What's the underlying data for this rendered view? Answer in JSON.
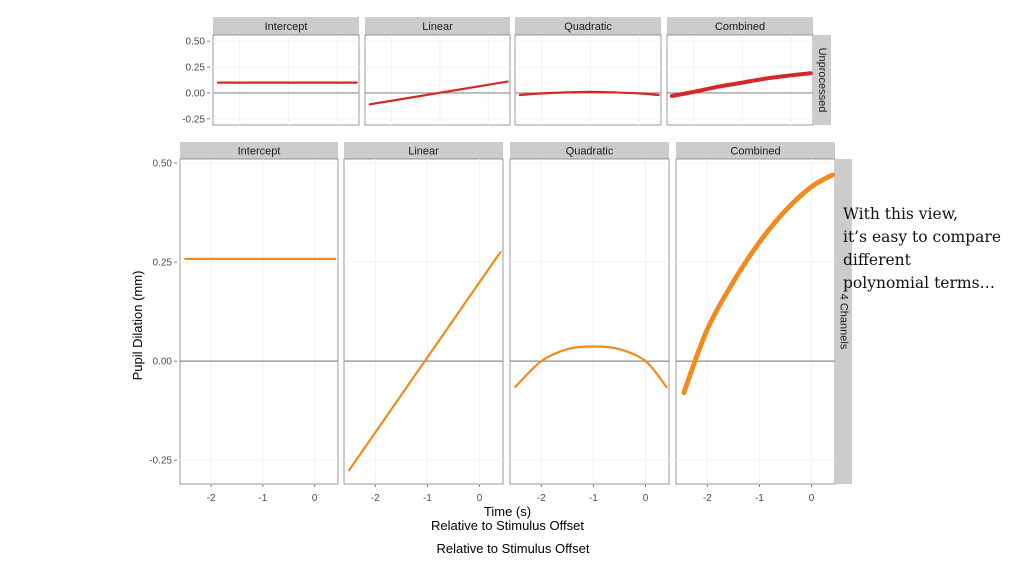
{
  "annotation": {
    "lines": [
      "With this view,",
      "it’s easy to compare",
      "different",
      "polynomial terms…"
    ]
  },
  "chart_data": [
    {
      "type": "line",
      "row_label": "Unprocessed",
      "facets": [
        "Intercept",
        "Linear",
        "Quadratic",
        "Combined"
      ],
      "x_ticks": [
        -2,
        -1,
        0
      ],
      "xlim": [
        -2.55,
        0.45
      ],
      "y_ticks": [
        0.5,
        0.25,
        0.0,
        -0.25
      ],
      "y_tick_labels": [
        "0.50",
        "0.25",
        "0.00",
        "-0.25"
      ],
      "ylim": [
        -0.31,
        0.56
      ],
      "color": "#d62728",
      "series": [
        {
          "facet": "Intercept",
          "x": [
            -2.45,
            0.4
          ],
          "y": [
            0.1,
            0.1
          ]
        },
        {
          "facet": "Linear",
          "x": [
            -2.45,
            0.4
          ],
          "y": [
            -0.11,
            0.11
          ]
        },
        {
          "facet": "Quadratic",
          "x": [
            -2.45,
            -2.0,
            -1.5,
            -1.0,
            -0.5,
            0.0,
            0.4
          ],
          "y": [
            -0.02,
            -0.005,
            0.005,
            0.01,
            0.005,
            -0.005,
            -0.02
          ]
        },
        {
          "facet": "Combined",
          "x": [
            -2.45,
            -2.0,
            -1.5,
            -1.0,
            -0.5,
            0.0,
            0.4
          ],
          "y": [
            -0.03,
            0.01,
            0.06,
            0.1,
            0.14,
            0.17,
            0.19
          ]
        }
      ]
    },
    {
      "type": "line",
      "row_label": "4 Channels",
      "facets": [
        "Intercept",
        "Linear",
        "Quadratic",
        "Combined"
      ],
      "x_ticks": [
        -2,
        -1,
        0
      ],
      "xlim": [
        -2.6,
        0.45
      ],
      "y_ticks": [
        0.5,
        0.25,
        0.0,
        -0.25
      ],
      "y_tick_labels": [
        "0.50",
        "0.25",
        "0.00",
        "-0.25"
      ],
      "ylim": [
        -0.31,
        0.51
      ],
      "ylabel": "Pupil Dilation (mm)",
      "xlabel": "Time (s)",
      "x_subtitle": "Relative to Stimulus Offset",
      "color": "#f28a1c",
      "series": [
        {
          "facet": "Intercept",
          "x": [
            -2.5,
            0.4
          ],
          "y": [
            0.258,
            0.258
          ]
        },
        {
          "facet": "Linear",
          "x": [
            -2.5,
            0.4
          ],
          "y": [
            -0.275,
            0.275
          ]
        },
        {
          "facet": "Quadratic",
          "x": [
            -2.5,
            -2.0,
            -1.5,
            -1.0,
            -0.5,
            0.0,
            0.4
          ],
          "y": [
            -0.065,
            0.0,
            0.03,
            0.037,
            0.03,
            0.0,
            -0.065
          ]
        },
        {
          "facet": "Combined",
          "x": [
            -2.45,
            -2.0,
            -1.5,
            -1.0,
            -0.5,
            0.0,
            0.4
          ],
          "y": [
            -0.08,
            0.08,
            0.2,
            0.3,
            0.38,
            0.44,
            0.47
          ]
        }
      ]
    }
  ],
  "footer_caption": "Relative to Stimulus Offset"
}
